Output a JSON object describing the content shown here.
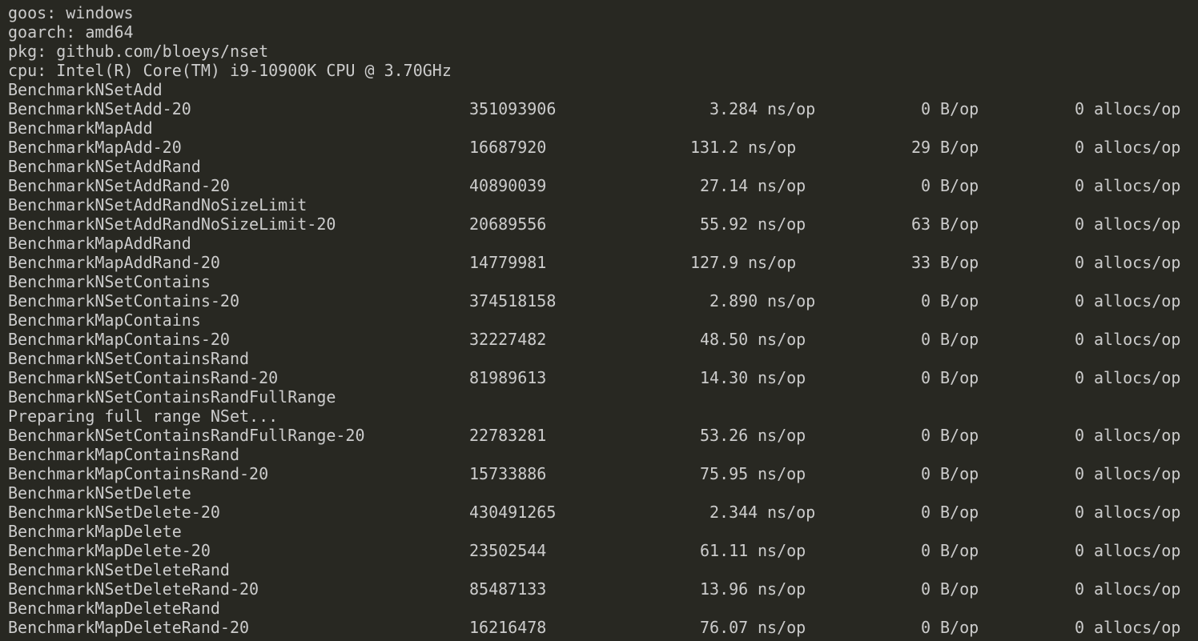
{
  "terminal": {
    "header": [
      "goos: windows",
      "goarch: amd64",
      "pkg: github.com/bloeys/nset",
      "cpu: Intel(R) Core(TM) i9-10900K CPU @ 3.70GHz"
    ],
    "lines": [
      {
        "text": "BenchmarkNSetAdd"
      },
      {
        "name": "BenchmarkNSetAdd-20",
        "iterations": "351093906",
        "ns": "3.284",
        "ns_unit": "ns/op",
        "bytes": "0",
        "bytes_unit": "B/op",
        "allocs": "0",
        "allocs_unit": "allocs/op"
      },
      {
        "text": "BenchmarkMapAdd"
      },
      {
        "name": "BenchmarkMapAdd-20",
        "iterations": "16687920",
        "ns": "131.2",
        "ns_unit": "ns/op",
        "bytes": "29",
        "bytes_unit": "B/op",
        "allocs": "0",
        "allocs_unit": "allocs/op"
      },
      {
        "text": "BenchmarkNSetAddRand"
      },
      {
        "name": "BenchmarkNSetAddRand-20",
        "iterations": "40890039",
        "ns": "27.14",
        "ns_unit": "ns/op",
        "bytes": "0",
        "bytes_unit": "B/op",
        "allocs": "0",
        "allocs_unit": "allocs/op"
      },
      {
        "text": "BenchmarkNSetAddRandNoSizeLimit"
      },
      {
        "name": "BenchmarkNSetAddRandNoSizeLimit-20",
        "iterations": "20689556",
        "ns": "55.92",
        "ns_unit": "ns/op",
        "bytes": "63",
        "bytes_unit": "B/op",
        "allocs": "0",
        "allocs_unit": "allocs/op"
      },
      {
        "text": "BenchmarkMapAddRand"
      },
      {
        "name": "BenchmarkMapAddRand-20",
        "iterations": "14779981",
        "ns": "127.9",
        "ns_unit": "ns/op",
        "bytes": "33",
        "bytes_unit": "B/op",
        "allocs": "0",
        "allocs_unit": "allocs/op"
      },
      {
        "text": "BenchmarkNSetContains"
      },
      {
        "name": "BenchmarkNSetContains-20",
        "iterations": "374518158",
        "ns": "2.890",
        "ns_unit": "ns/op",
        "bytes": "0",
        "bytes_unit": "B/op",
        "allocs": "0",
        "allocs_unit": "allocs/op"
      },
      {
        "text": "BenchmarkMapContains"
      },
      {
        "name": "BenchmarkMapContains-20",
        "iterations": "32227482",
        "ns": "48.50",
        "ns_unit": "ns/op",
        "bytes": "0",
        "bytes_unit": "B/op",
        "allocs": "0",
        "allocs_unit": "allocs/op"
      },
      {
        "text": "BenchmarkNSetContainsRand"
      },
      {
        "name": "BenchmarkNSetContainsRand-20",
        "iterations": "81989613",
        "ns": "14.30",
        "ns_unit": "ns/op",
        "bytes": "0",
        "bytes_unit": "B/op",
        "allocs": "0",
        "allocs_unit": "allocs/op"
      },
      {
        "text": "BenchmarkNSetContainsRandFullRange"
      },
      {
        "text": "Preparing full range NSet..."
      },
      {
        "name": "BenchmarkNSetContainsRandFullRange-20",
        "iterations": "22783281",
        "ns": "53.26",
        "ns_unit": "ns/op",
        "bytes": "0",
        "bytes_unit": "B/op",
        "allocs": "0",
        "allocs_unit": "allocs/op"
      },
      {
        "text": "BenchmarkMapContainsRand"
      },
      {
        "name": "BenchmarkMapContainsRand-20",
        "iterations": "15733886",
        "ns": "75.95",
        "ns_unit": "ns/op",
        "bytes": "0",
        "bytes_unit": "B/op",
        "allocs": "0",
        "allocs_unit": "allocs/op"
      },
      {
        "text": "BenchmarkNSetDelete"
      },
      {
        "name": "BenchmarkNSetDelete-20",
        "iterations": "430491265",
        "ns": "2.344",
        "ns_unit": "ns/op",
        "bytes": "0",
        "bytes_unit": "B/op",
        "allocs": "0",
        "allocs_unit": "allocs/op"
      },
      {
        "text": "BenchmarkMapDelete"
      },
      {
        "name": "BenchmarkMapDelete-20",
        "iterations": "23502544",
        "ns": "61.11",
        "ns_unit": "ns/op",
        "bytes": "0",
        "bytes_unit": "B/op",
        "allocs": "0",
        "allocs_unit": "allocs/op"
      },
      {
        "text": "BenchmarkNSetDeleteRand"
      },
      {
        "name": "BenchmarkNSetDeleteRand-20",
        "iterations": "85487133",
        "ns": "13.96",
        "ns_unit": "ns/op",
        "bytes": "0",
        "bytes_unit": "B/op",
        "allocs": "0",
        "allocs_unit": "allocs/op"
      },
      {
        "text": "BenchmarkMapDeleteRand"
      },
      {
        "name": "BenchmarkMapDeleteRand-20",
        "iterations": "16216478",
        "ns": "76.07",
        "ns_unit": "ns/op",
        "bytes": "0",
        "bytes_unit": "B/op",
        "allocs": "0",
        "allocs_unit": "allocs/op"
      }
    ]
  },
  "colors": {
    "background": "#282822",
    "text": "#cccccc",
    "prompt_green": "#8cc63f"
  }
}
